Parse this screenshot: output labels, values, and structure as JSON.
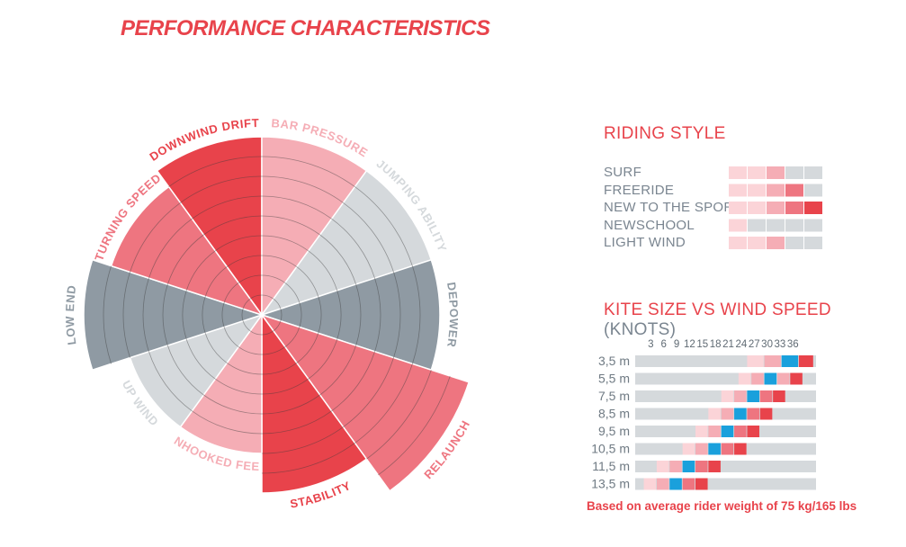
{
  "title": "PERFORMANCE CHARACTERISTICS",
  "colors": {
    "red": "#e8434b",
    "pink": "#ee7580",
    "lightpink": "#f5adb5",
    "palepink": "#fbd4d8",
    "grey": "#8f9aa3",
    "lightgrey": "#d5d9dc",
    "blue": "#1aa0dc"
  },
  "chart_data": [
    {
      "type": "polar_bar",
      "title": "PERFORMANCE CHARACTERISTICS",
      "scale_max": 10,
      "segments": [
        {
          "label": "DOWNWIND DRIFT",
          "value": 9,
          "color": "red"
        },
        {
          "label": "BAR PRESSURE",
          "value": 9,
          "color": "lightpink"
        },
        {
          "label": "JUMPING ABILITY",
          "value": 9,
          "color": "lightgrey"
        },
        {
          "label": "DEPOWER",
          "value": 9,
          "color": "grey"
        },
        {
          "label": "RELAUNCH",
          "value": 11,
          "color": "pink"
        },
        {
          "label": "STABILITY",
          "value": 9,
          "color": "red"
        },
        {
          "label": "UNHOOKED FEEL",
          "value": 7,
          "color": "lightpink"
        },
        {
          "label": "UP WIND",
          "value": 7,
          "color": "lightgrey"
        },
        {
          "label": "LOW END",
          "value": 9,
          "color": "grey"
        },
        {
          "label": "TURNING SPEED",
          "value": 8,
          "color": "pink"
        }
      ]
    },
    {
      "type": "heatmap",
      "title": "RIDING STYLE",
      "categories": [
        "SURF",
        "FREERIDE",
        "NEW TO THE SPORT",
        "NEWSCHOOL",
        "LIGHT WIND"
      ],
      "scale_steps": 5,
      "values": [
        3,
        4,
        5,
        1,
        3
      ]
    },
    {
      "type": "heatmap",
      "title": "KITE SIZE VS WIND SPEED",
      "unit": "(KNOTS)",
      "x": [
        "3",
        "6",
        "9",
        "12",
        "15",
        "18",
        "21",
        "24",
        "27",
        "30",
        "33",
        "36"
      ],
      "x_range": [
        0,
        36
      ],
      "rows": [
        {
          "size": "3,5 m",
          "cells": [
            [
              26,
              30,
              "palepink"
            ],
            [
              30,
              34,
              "lightpink"
            ],
            [
              34,
              38,
              "blue"
            ],
            [
              38,
              41.5,
              "red"
            ]
          ]
        },
        {
          "size": "5,5 m",
          "cells": [
            [
              24,
              27,
              "palepink"
            ],
            [
              27,
              30,
              "lightpink"
            ],
            [
              30,
              33,
              "blue"
            ],
            [
              33,
              36,
              "lightpink"
            ],
            [
              36,
              39,
              "red"
            ]
          ]
        },
        {
          "size": "7,5 m",
          "cells": [
            [
              20,
              23,
              "palepink"
            ],
            [
              23,
              26,
              "lightpink"
            ],
            [
              26,
              29,
              "blue"
            ],
            [
              29,
              32,
              "pink"
            ],
            [
              32,
              35,
              "red"
            ]
          ]
        },
        {
          "size": "8,5 m",
          "cells": [
            [
              17,
              20,
              "palepink"
            ],
            [
              20,
              23,
              "lightpink"
            ],
            [
              23,
              26,
              "blue"
            ],
            [
              26,
              29,
              "pink"
            ],
            [
              29,
              32,
              "red"
            ]
          ]
        },
        {
          "size": "9,5 m",
          "cells": [
            [
              14,
              17,
              "palepink"
            ],
            [
              17,
              20,
              "lightpink"
            ],
            [
              20,
              23,
              "blue"
            ],
            [
              23,
              26,
              "pink"
            ],
            [
              26,
              29,
              "red"
            ]
          ]
        },
        {
          "size": "10,5 m",
          "cells": [
            [
              11,
              14,
              "palepink"
            ],
            [
              14,
              17,
              "lightpink"
            ],
            [
              17,
              20,
              "blue"
            ],
            [
              20,
              23,
              "pink"
            ],
            [
              23,
              26,
              "red"
            ]
          ]
        },
        {
          "size": "11,5 m",
          "cells": [
            [
              5,
              8,
              "palepink"
            ],
            [
              8,
              11,
              "lightpink"
            ],
            [
              11,
              14,
              "blue"
            ],
            [
              14,
              17,
              "pink"
            ],
            [
              17,
              20,
              "red"
            ]
          ]
        },
        {
          "size": "13,5 m",
          "cells": [
            [
              2,
              5,
              "palepink"
            ],
            [
              5,
              8,
              "lightpink"
            ],
            [
              8,
              11,
              "blue"
            ],
            [
              11,
              14,
              "pink"
            ],
            [
              14,
              17,
              "red"
            ]
          ]
        }
      ],
      "note": "Based on average rider weight of 75 kg/165 lbs"
    }
  ]
}
